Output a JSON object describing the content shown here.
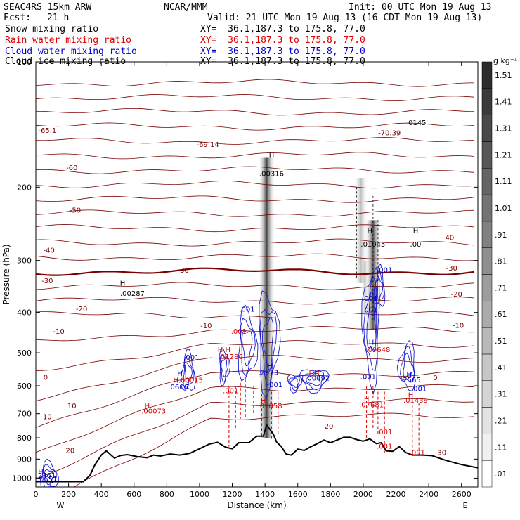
{
  "header": {
    "model": "SEAC4RS 15km ARW",
    "fcst_label": "Fcst:",
    "fcst_value": "21 h",
    "org": "NCAR/MMM",
    "init": "Init: 00 UTC Mon 19 Aug 13",
    "valid": "Valid: 21 UTC Mon 19 Aug 13 (16 CDT Mon 19 Aug 13)"
  },
  "legend": [
    {
      "label": "Snow mixing ratio",
      "xy": "XY=  36.1,187.3 to 175.8, 77.0",
      "color": "#000000"
    },
    {
      "label": "Rain water mixing ratio",
      "xy": "XY=  36.1,187.3 to 175.8, 77.0",
      "color": "#dd0000"
    },
    {
      "label": "Cloud water mixing ratio",
      "xy": "XY=  36.1,187.3 to 175.8, 77.0",
      "color": "#0000cc"
    },
    {
      "label": "Cloud ice mixing ratio",
      "xy": "XY=  36.1,187.3 to 175.8, 77.0",
      "color": "#000000"
    }
  ],
  "colorbar": {
    "unit": "g kg⁻¹",
    "labels": [
      ".01",
      ".11",
      ".21",
      ".31",
      ".41",
      ".51",
      ".61",
      ".71",
      ".81",
      ".91",
      "1.01",
      "1.11",
      "1.21",
      "1.31",
      "1.41",
      "1.51"
    ]
  },
  "chart_data": {
    "type": "cross-section",
    "xlabel": "Distance (km)",
    "ylabel": "Pressure (hPa)",
    "xlim": [
      0,
      2700
    ],
    "ylim": [
      1050,
      100
    ],
    "y_log": true,
    "x_ticks": [
      "0",
      "200",
      "400",
      "600",
      "800",
      "1000",
      "1200",
      "1400",
      "1600",
      "1800",
      "2000",
      "2200",
      "2400",
      "2600"
    ],
    "y_ticks": [
      "100",
      "200",
      "300",
      "400",
      "500",
      "600",
      "700",
      "800",
      "900",
      "1000"
    ],
    "x_end_labels": {
      "left": "W",
      "right": "E"
    },
    "terrain": [
      [
        0,
        1020
      ],
      [
        290,
        1020
      ],
      [
        330,
        985
      ],
      [
        360,
        930
      ],
      [
        400,
        880
      ],
      [
        430,
        860
      ],
      [
        480,
        895
      ],
      [
        520,
        882
      ],
      [
        560,
        878
      ],
      [
        620,
        888
      ],
      [
        680,
        893
      ],
      [
        720,
        880
      ],
      [
        760,
        885
      ],
      [
        820,
        875
      ],
      [
        880,
        880
      ],
      [
        940,
        872
      ],
      [
        1000,
        850
      ],
      [
        1060,
        828
      ],
      [
        1110,
        820
      ],
      [
        1160,
        843
      ],
      [
        1200,
        850
      ],
      [
        1240,
        822
      ],
      [
        1300,
        822
      ],
      [
        1350,
        793
      ],
      [
        1390,
        793
      ],
      [
        1410,
        745
      ],
      [
        1450,
        783
      ],
      [
        1470,
        818
      ],
      [
        1500,
        840
      ],
      [
        1530,
        876
      ],
      [
        1560,
        880
      ],
      [
        1600,
        852
      ],
      [
        1640,
        858
      ],
      [
        1680,
        840
      ],
      [
        1720,
        826
      ],
      [
        1760,
        810
      ],
      [
        1800,
        822
      ],
      [
        1840,
        810
      ],
      [
        1880,
        798
      ],
      [
        1920,
        798
      ],
      [
        1960,
        808
      ],
      [
        2000,
        815
      ],
      [
        2040,
        805
      ],
      [
        2080,
        826
      ],
      [
        2110,
        822
      ],
      [
        2140,
        860
      ],
      [
        2180,
        862
      ],
      [
        2220,
        840
      ],
      [
        2260,
        868
      ],
      [
        2300,
        880
      ],
      [
        2360,
        880
      ],
      [
        2420,
        883
      ],
      [
        2500,
        905
      ],
      [
        2600,
        928
      ],
      [
        2700,
        944
      ]
    ],
    "contours": [
      {
        "value": "-65.1",
        "kind": "label"
      },
      {
        "value": "-69.14",
        "kind": "label"
      },
      {
        "value": "-70.39",
        "kind": "label"
      },
      {
        "value": "-60"
      },
      {
        "value": "-50"
      },
      {
        "value": "-40"
      },
      {
        "value": "-30"
      },
      {
        "value": "-20"
      },
      {
        "value": "-10"
      },
      {
        "value": "0"
      },
      {
        "value": "10"
      },
      {
        "value": "20"
      },
      {
        "value": "30"
      }
    ],
    "labels": [
      {
        "text": "-65.1",
        "x": 70,
        "p": 148,
        "color": "#7a0000"
      },
      {
        "text": "-69.14",
        "x": 1050,
        "p": 160,
        "color": "#7a0000"
      },
      {
        "text": "-70.39",
        "x": 2160,
        "p": 150,
        "color": "#7a0000"
      },
      {
        "text": "0145",
        "x": 2330,
        "p": 142,
        "color": "#000000"
      },
      {
        "text": "-60",
        "x": 220,
        "p": 182,
        "color": "#7a0000"
      },
      {
        "text": "-50",
        "x": 240,
        "p": 230,
        "color": "#7a0000"
      },
      {
        "text": "-40",
        "x": 2520,
        "p": 268,
        "color": "#7a0000"
      },
      {
        "text": "-40",
        "x": 80,
        "p": 287,
        "color": "#7a0000"
      },
      {
        "text": "-30",
        "x": 900,
        "p": 321,
        "color": "#7a0000"
      },
      {
        "text": "-30",
        "x": 2540,
        "p": 317,
        "color": "#7a0000"
      },
      {
        "text": "-30",
        "x": 70,
        "p": 340,
        "color": "#7a0000"
      },
      {
        "text": "-20",
        "x": 2570,
        "p": 366,
        "color": "#7a0000"
      },
      {
        "text": "-20",
        "x": 280,
        "p": 397,
        "color": "#7a0000"
      },
      {
        "text": "-10",
        "x": 1040,
        "p": 436,
        "color": "#7a0000"
      },
      {
        "text": "-10",
        "x": 2580,
        "p": 435,
        "color": "#7a0000"
      },
      {
        "text": "-10",
        "x": 140,
        "p": 450,
        "color": "#7a0000"
      },
      {
        "text": "0",
        "x": 60,
        "p": 580,
        "color": "#7a0000"
      },
      {
        "text": "0",
        "x": 2440,
        "p": 582,
        "color": "#7a0000"
      },
      {
        "text": "10",
        "x": 220,
        "p": 680,
        "color": "#7a0000"
      },
      {
        "text": "10",
        "x": 70,
        "p": 722,
        "color": "#7a0000"
      },
      {
        "text": "20",
        "x": 1790,
        "p": 760,
        "color": "#7a0000"
      },
      {
        "text": "20",
        "x": 210,
        "p": 870,
        "color": "#7a0000"
      },
      {
        "text": "30",
        "x": 2480,
        "p": 880,
        "color": "#7a0000"
      },
      {
        "text": "H",
        "x": 1440,
        "p": 170,
        "color": "#000000"
      },
      {
        "text": ".00316",
        "x": 1440,
        "p": 188,
        "color": "#000000"
      },
      {
        "text": "H",
        "x": 2040,
        "p": 258,
        "color": "#000000"
      },
      {
        "text": ".01045",
        "x": 2060,
        "p": 278,
        "color": "#000000"
      },
      {
        "text": "H",
        "x": 2320,
        "p": 258,
        "color": "#000000"
      },
      {
        "text": ".00",
        "x": 2320,
        "p": 278,
        "color": "#000000"
      },
      {
        "text": "H",
        "x": 530,
        "p": 345,
        "color": "#000000"
      },
      {
        "text": ".00287",
        "x": 590,
        "p": 365,
        "color": "#000000"
      },
      {
        "text": ".001",
        "x": 2130,
        "p": 320,
        "color": "#0000cc"
      },
      {
        "text": ".001",
        "x": 2040,
        "p": 375,
        "color": "#0000cc"
      },
      {
        "text": ".001",
        "x": 2040,
        "p": 400,
        "color": "#0000cc"
      },
      {
        "text": ".001",
        "x": 1290,
        "p": 398,
        "color": "#0000cc"
      },
      {
        "text": ".001",
        "x": 1240,
        "p": 450,
        "color": "#dd0000"
      },
      {
        "text": "H",
        "x": 2050,
        "p": 478,
        "color": "#0000cc"
      },
      {
        "text": ".09648",
        "x": 2090,
        "p": 498,
        "color": "#dd0000"
      },
      {
        "text": "H H",
        "x": 1150,
        "p": 498,
        "color": "#dd0000"
      },
      {
        "text": ".01286",
        "x": 1190,
        "p": 518,
        "color": "#dd0000"
      },
      {
        "text": ".001",
        "x": 950,
        "p": 520,
        "color": "#0000cc"
      },
      {
        "text": "H",
        "x": 1430,
        "p": 545,
        "color": "#0000cc"
      },
      {
        "text": ".2973",
        "x": 1420,
        "p": 565,
        "color": "#0000cc"
      },
      {
        "text": "HH",
        "x": 1700,
        "p": 565,
        "color": "#dd0000"
      },
      {
        "text": ".00092",
        "x": 1720,
        "p": 583,
        "color": "#0000cc"
      },
      {
        "text": ".001",
        "x": 2030,
        "p": 578,
        "color": "#0000cc"
      },
      {
        "text": "H",
        "x": 2280,
        "p": 570,
        "color": "#0000cc"
      },
      {
        "text": ".2565",
        "x": 2290,
        "p": 588,
        "color": "#0000cc"
      },
      {
        "text": "H",
        "x": 880,
        "p": 568,
        "color": "#0000cc"
      },
      {
        "text": "H.00015",
        "x": 930,
        "p": 590,
        "color": "#dd0000"
      },
      {
        "text": ".0606",
        "x": 870,
        "p": 612,
        "color": "#0000cc"
      },
      {
        "text": ".001",
        "x": 2340,
        "p": 618,
        "color": "#0000cc"
      },
      {
        "text": ".001",
        "x": 1460,
        "p": 605,
        "color": "#0000cc"
      },
      {
        "text": ".001",
        "x": 1190,
        "p": 625,
        "color": "#dd0000"
      },
      {
        "text": "H",
        "x": 1390,
        "p": 660,
        "color": "#dd0000"
      },
      {
        "text": ".09858",
        "x": 1430,
        "p": 680,
        "color": "#dd0000"
      },
      {
        "text": "H",
        "x": 2290,
        "p": 640,
        "color": "#dd0000"
      },
      {
        "text": ".01439",
        "x": 2320,
        "p": 658,
        "color": "#dd0000"
      },
      {
        "text": "H",
        "x": 2020,
        "p": 655,
        "color": "#dd0000"
      },
      {
        "text": ".07681",
        "x": 2050,
        "p": 675,
        "color": "#dd0000"
      },
      {
        "text": "H",
        "x": 680,
        "p": 680,
        "color": "#dd0000"
      },
      {
        "text": ".00073",
        "x": 720,
        "p": 700,
        "color": "#dd0000"
      },
      {
        "text": ".001",
        "x": 2130,
        "p": 785,
        "color": "#dd0000"
      },
      {
        "text": ".001",
        "x": 2130,
        "p": 850,
        "color": "#dd0000"
      },
      {
        "text": ".001",
        "x": 2330,
        "p": 880,
        "color": "#dd0000"
      },
      {
        "text": "H",
        "x": 30,
        "p": 980,
        "color": "#0000cc"
      },
      {
        "text": ".2461",
        "x": 60,
        "p": 998,
        "color": "#0000cc"
      },
      {
        "text": ".0651",
        "x": 70,
        "p": 1018,
        "color": "#0000cc"
      }
    ]
  }
}
